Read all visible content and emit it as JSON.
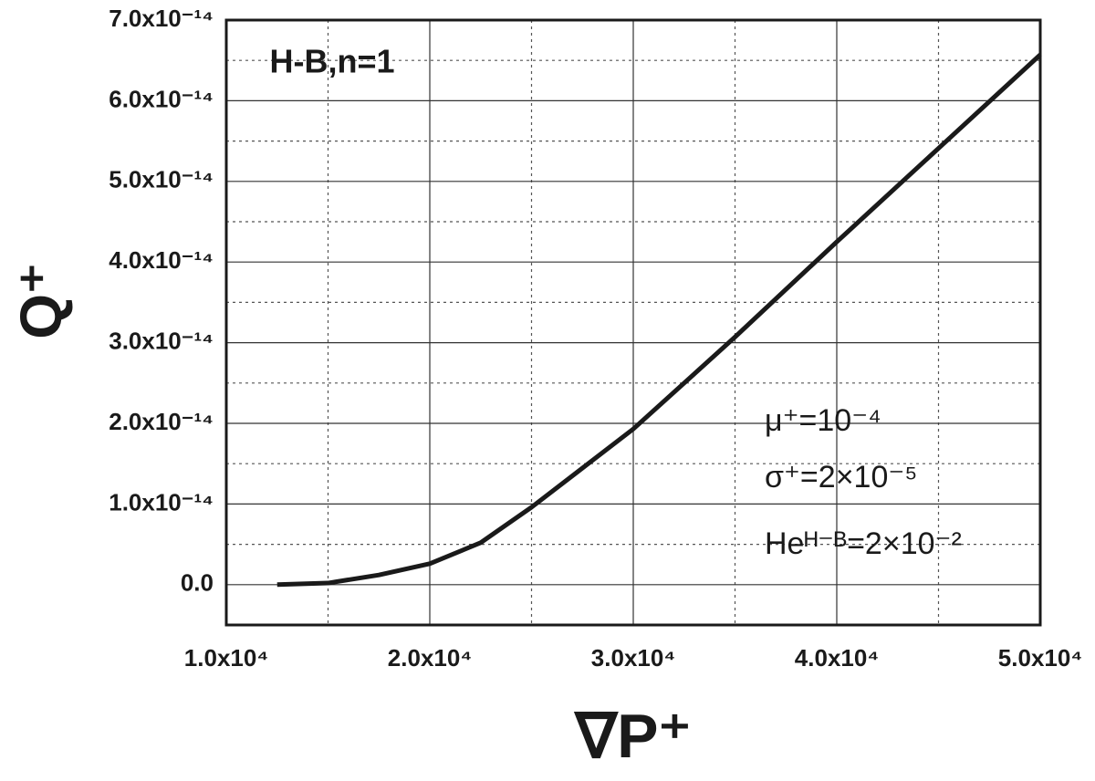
{
  "chart_data": {
    "type": "line",
    "title": "H-B,n=1",
    "x_label": "∇P⁺",
    "y_label": "Q⁺",
    "annotations": [
      "μ⁺=10⁻⁴",
      "σ⁺=2×10⁻⁵",
      "Heᴴ⁻ᴮ=2×10⁻²"
    ],
    "x": [
      12500,
      15000,
      17500,
      20000,
      22500,
      25000,
      30000,
      35000,
      40000,
      45000,
      50000
    ],
    "series": [
      {
        "color": "#1a1a1a",
        "values": [
          0,
          2e-16,
          1.2e-15,
          2.6e-15,
          5.2e-15,
          9.6e-15,
          1.93e-14,
          3.07e-14,
          4.25e-14,
          5.41e-14,
          6.57e-14
        ]
      }
    ],
    "xlim": [
      10000,
      50000
    ],
    "xticks": [
      {
        "value": 10000,
        "label": "1.0x10⁴"
      },
      {
        "value": 20000,
        "label": "2.0x10⁴"
      },
      {
        "value": 30000,
        "label": "3.0x10⁴"
      },
      {
        "value": 40000,
        "label": "4.0x10⁴"
      },
      {
        "value": 50000,
        "label": "5.0x10⁴"
      }
    ],
    "ylim": [
      -5e-15,
      7e-14
    ],
    "yticks": [
      {
        "value": 0,
        "label": "0.0"
      },
      {
        "value": 1e-14,
        "label": "1.0x10⁻¹⁴"
      },
      {
        "value": 2e-14,
        "label": "2.0x10⁻¹⁴"
      },
      {
        "value": 3e-14,
        "label": "3.0x10⁻¹⁴"
      },
      {
        "value": 4e-14,
        "label": "4.0x10⁻¹⁴"
      },
      {
        "value": 5e-14,
        "label": "5.0x10⁻¹⁴"
      },
      {
        "value": 6e-14,
        "label": "6.0x10⁻¹⁴"
      },
      {
        "value": 7e-14,
        "label": "7.0x10⁻¹⁴"
      }
    ],
    "grid": true
  }
}
